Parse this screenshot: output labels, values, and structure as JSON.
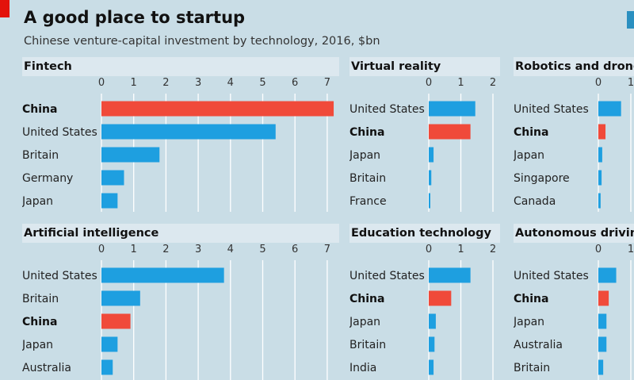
{
  "header": {
    "title": "A good place to startup",
    "subtitle": "Chinese venture-capital investment by technology, 2016, $bn"
  },
  "colors": {
    "highlight": "#f04a3a",
    "bar": "#1e9fe0",
    "grid": "#ffffff"
  },
  "chart_data": [
    {
      "type": "bar",
      "title": "Fintech",
      "categories": [
        "China",
        "United States",
        "Britain",
        "Germany",
        "Japan"
      ],
      "values": [
        7.2,
        5.4,
        1.8,
        0.7,
        0.5
      ],
      "highlight": "China",
      "xlim": [
        0,
        7
      ],
      "ticks": [
        0,
        1,
        2,
        3,
        4,
        5,
        6,
        7
      ]
    },
    {
      "type": "bar",
      "title": "Virtual reality",
      "categories": [
        "United States",
        "China",
        "Japan",
        "Britain",
        "France"
      ],
      "values": [
        1.45,
        1.3,
        0.15,
        0.08,
        0.02
      ],
      "highlight": "China",
      "xlim": [
        0,
        2
      ],
      "ticks": [
        0,
        1,
        2
      ]
    },
    {
      "type": "bar",
      "title": "Robotics and drones",
      "categories": [
        "United States",
        "China",
        "Japan",
        "Singapore",
        "Canada"
      ],
      "values": [
        0.7,
        0.22,
        0.12,
        0.1,
        0.07
      ],
      "highlight": "China",
      "xlim": [
        0,
        1
      ],
      "ticks": [
        0,
        1
      ]
    },
    {
      "type": "bar",
      "title": "Artificial intelligence",
      "categories": [
        "United States",
        "Britain",
        "China",
        "Japan",
        "Australia"
      ],
      "values": [
        3.8,
        1.2,
        0.9,
        0.5,
        0.35
      ],
      "highlight": "China",
      "xlim": [
        0,
        7
      ],
      "ticks": [
        0,
        1,
        2,
        3,
        4,
        5,
        6,
        7
      ]
    },
    {
      "type": "bar",
      "title": "Education technology",
      "categories": [
        "United States",
        "China",
        "Japan",
        "Britain",
        "India"
      ],
      "values": [
        1.3,
        0.7,
        0.22,
        0.18,
        0.15
      ],
      "highlight": "China",
      "xlim": [
        0,
        2
      ],
      "ticks": [
        0,
        1,
        2
      ]
    },
    {
      "type": "bar",
      "title": "Autonomous driving",
      "categories": [
        "United States",
        "China",
        "Japan",
        "Australia",
        "Britain"
      ],
      "values": [
        0.55,
        0.32,
        0.25,
        0.25,
        0.15
      ],
      "highlight": "China",
      "xlim": [
        0,
        1
      ],
      "ticks": [
        0,
        1
      ]
    }
  ]
}
